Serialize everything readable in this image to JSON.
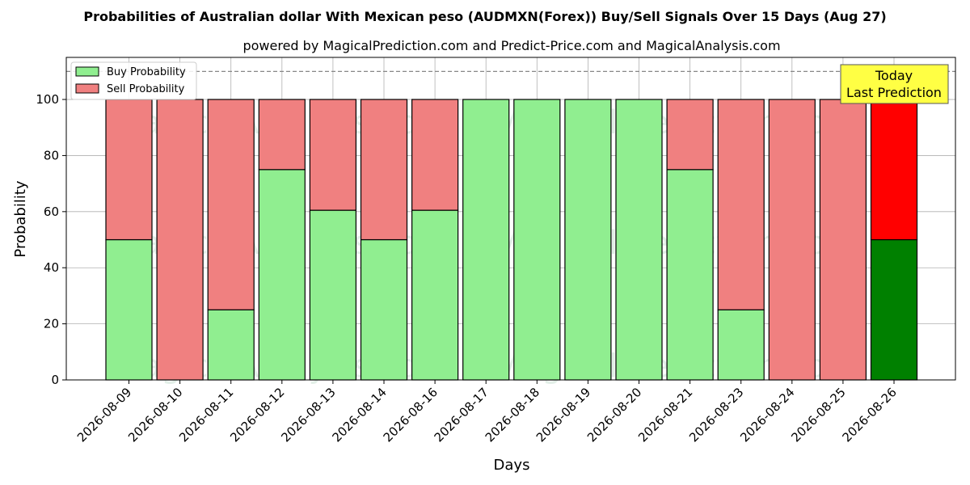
{
  "chart_data": {
    "type": "bar",
    "stacked": true,
    "title": "Probabilities of Australian dollar With Mexican peso (AUDMXN(Forex)) Buy/Sell Signals Over 15 Days (Aug 27)",
    "subtitle": "powered by MagicalPrediction.com and Predict-Price.com and MagicalAnalysis.com",
    "xlabel": "Days",
    "ylabel": "Probability",
    "ylim": [
      0,
      115
    ],
    "yticks": [
      0,
      20,
      40,
      60,
      80,
      100
    ],
    "grid": true,
    "legend_position": "top-left",
    "reference_line": 110,
    "categories": [
      "2026-08-09",
      "2026-08-10",
      "2026-08-11",
      "2026-08-12",
      "2026-08-13",
      "2026-08-14",
      "2026-08-16",
      "2026-08-17",
      "2026-08-18",
      "2026-08-19",
      "2026-08-20",
      "2026-08-21",
      "2026-08-23",
      "2026-08-24",
      "2026-08-25",
      "2026-08-26"
    ],
    "series": [
      {
        "name": "Buy Probability",
        "color": "#90ee90",
        "highlight_color": "#008000",
        "values": [
          50,
          0,
          25,
          75,
          60.5,
          50,
          60.5,
          100,
          100,
          100,
          100,
          75,
          25,
          0,
          0,
          50
        ]
      },
      {
        "name": "Sell Probability",
        "color": "#f08080",
        "highlight_color": "#ff0000",
        "values": [
          50,
          100,
          75,
          25,
          39.5,
          50,
          39.5,
          0,
          0,
          0,
          0,
          25,
          75,
          100,
          100,
          50
        ]
      }
    ],
    "highlight_index": 15,
    "annotation": {
      "lines": [
        "Today",
        "Last Prediction"
      ],
      "color": "#ffff44"
    },
    "watermarks": [
      "MagicalAnalysis.com",
      "MagicalPrediction.com"
    ]
  }
}
